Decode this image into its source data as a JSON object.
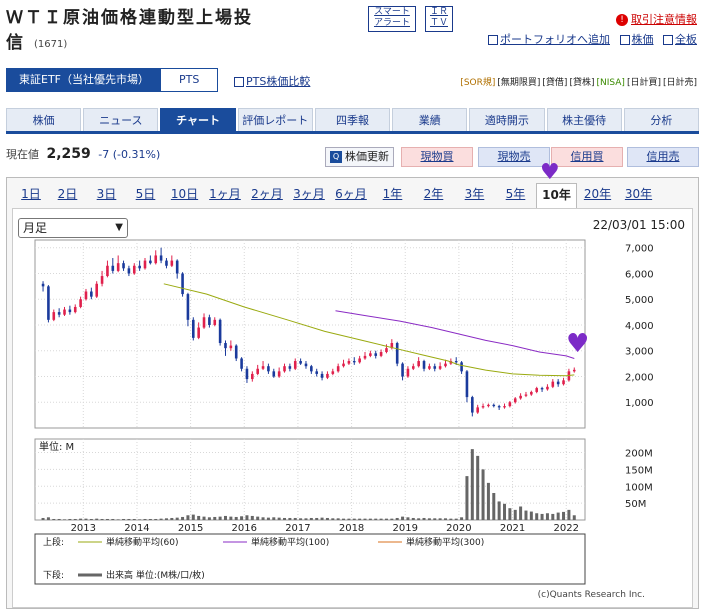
{
  "header": {
    "title_line1": "ＷＴＩ原油価格連動型上場投",
    "title_line2": "信",
    "code": "(1671)",
    "smart_alert": [
      "スマート",
      "アラート"
    ],
    "ir_tv": [
      "ＩＲ",
      "ＴＶ"
    ],
    "warning_label": "取引注意情報",
    "links": [
      "ポートフォリオへ追加",
      "株価",
      "全板"
    ]
  },
  "market": {
    "primary": "東証ETF（当社優先市場）",
    "pts": "PTS",
    "pts_compare": "PTS株価比較",
    "badges": [
      "[SOR規]",
      "[無期限買]",
      "[貸借]",
      "[貸株]",
      "[NISA]",
      "[日計買]",
      "[日計売]"
    ]
  },
  "tabs": [
    "株価",
    "ニュース",
    "チャート",
    "評価レポート",
    "四季報",
    "業績",
    "適時開示",
    "株主優待",
    "分析"
  ],
  "active_tab": "チャート",
  "quote": {
    "label": "現在値",
    "price": "2,259",
    "change": "-7",
    "change_pct": "(-0.31%)",
    "refresh_label": "株価更新"
  },
  "trade_buttons": [
    "現物買",
    "現物売",
    "信用買",
    "信用売"
  ],
  "periods": [
    "1日",
    "2日",
    "3日",
    "5日",
    "10日",
    "1ヶ月",
    "2ヶ月",
    "3ヶ月",
    "6ヶ月",
    "1年",
    "2年",
    "3年",
    "5年",
    "10年",
    "20年",
    "30年"
  ],
  "active_period": "10年",
  "chart": {
    "interval_select": "月足",
    "timestamp": "22/03/01 15:00",
    "unit_label": "単位: M",
    "legend_upper_label": "上段:",
    "legend_lower_label": "下段:",
    "legend_lower_text": "出来高 単位:(M株/口/枚)",
    "credit": "(c)Quants Research Inc."
  },
  "chart_data": {
    "type": "line",
    "x_labels": [
      "2013",
      "2014",
      "2015",
      "2016",
      "2017",
      "2018",
      "2019",
      "2020",
      "2021",
      "2022"
    ],
    "price_axis": {
      "ticks": [
        "1,000",
        "2,000",
        "3,000",
        "4,000",
        "5,000",
        "6,000",
        "7,000"
      ],
      "ylim": [
        0,
        7300
      ]
    },
    "volume_axis": {
      "ticks": [
        "50M",
        "100M",
        "150M",
        "200M"
      ],
      "ylim": [
        0,
        240
      ]
    },
    "series": [
      {
        "name": "単純移動平均(60)",
        "color": "#9aaa10",
        "points": [
          [
            2014.5,
            5600
          ],
          [
            2015.3,
            5200
          ],
          [
            2016.0,
            4700
          ],
          [
            2016.8,
            4200
          ],
          [
            2017.5,
            3750
          ],
          [
            2018.2,
            3400
          ],
          [
            2018.8,
            3100
          ],
          [
            2019.3,
            2850
          ],
          [
            2019.8,
            2600
          ],
          [
            2020.0,
            2450
          ],
          [
            2020.5,
            2250
          ],
          [
            2021.0,
            2100
          ],
          [
            2021.5,
            2050
          ],
          [
            2022.0,
            2030
          ],
          [
            2022.15,
            2060
          ]
        ]
      },
      {
        "name": "単純移動平均(100)",
        "color": "#8a2bc4",
        "points": [
          [
            2017.7,
            4550
          ],
          [
            2018.3,
            4350
          ],
          [
            2018.9,
            4150
          ],
          [
            2019.5,
            3900
          ],
          [
            2020.0,
            3650
          ],
          [
            2020.5,
            3400
          ],
          [
            2021.0,
            3200
          ],
          [
            2021.5,
            2950
          ],
          [
            2022.0,
            2800
          ],
          [
            2022.15,
            2700
          ]
        ]
      },
      {
        "name": "単純移動平均(300)",
        "color": "#d9701c",
        "points": []
      }
    ],
    "price_monthly": [
      [
        2012.25,
        5600,
        5500,
        5700,
        5300
      ],
      [
        2012.35,
        5500,
        4200,
        5550,
        4100
      ],
      [
        2012.45,
        4200,
        4500,
        4600,
        4150
      ],
      [
        2012.55,
        4500,
        4400,
        4650,
        4300
      ],
      [
        2012.65,
        4400,
        4600,
        4700,
        4350
      ],
      [
        2012.75,
        4600,
        4500,
        4750,
        4400
      ],
      [
        2012.85,
        4500,
        4700,
        4800,
        4450
      ],
      [
        2012.95,
        4700,
        5000,
        5100,
        4650
      ],
      [
        2013.05,
        5000,
        5300,
        5400,
        4950
      ],
      [
        2013.15,
        5300,
        5100,
        5450,
        5000
      ],
      [
        2013.25,
        5100,
        5600,
        5700,
        5050
      ],
      [
        2013.35,
        5600,
        5900,
        6100,
        5500
      ],
      [
        2013.45,
        5900,
        6300,
        6500,
        5850
      ],
      [
        2013.55,
        6300,
        6100,
        6600,
        6000
      ],
      [
        2013.65,
        6100,
        6400,
        6700,
        6050
      ],
      [
        2013.75,
        6400,
        6200,
        6500,
        6100
      ],
      [
        2013.85,
        6200,
        6000,
        6300,
        5900
      ],
      [
        2013.95,
        6000,
        6300,
        6400,
        5950
      ],
      [
        2014.05,
        6300,
        6200,
        6500,
        6100
      ],
      [
        2014.15,
        6200,
        6500,
        6600,
        6150
      ],
      [
        2014.25,
        6500,
        6400,
        6700,
        6350
      ],
      [
        2014.35,
        6400,
        6700,
        6900,
        6350
      ],
      [
        2014.45,
        6700,
        6500,
        7000,
        6400
      ],
      [
        2014.55,
        6500,
        6300,
        6600,
        6200
      ],
      [
        2014.65,
        6300,
        6500,
        6700,
        6250
      ],
      [
        2014.75,
        6500,
        6000,
        6550,
        5800
      ],
      [
        2014.85,
        6000,
        5200,
        6050,
        5100
      ],
      [
        2014.95,
        5200,
        4200,
        5250,
        3950
      ],
      [
        2015.05,
        4200,
        3500,
        4300,
        3400
      ],
      [
        2015.15,
        3500,
        3900,
        4100,
        3450
      ],
      [
        2015.25,
        3900,
        4300,
        4450,
        3850
      ],
      [
        2015.35,
        4300,
        4000,
        4400,
        3900
      ],
      [
        2015.45,
        4000,
        4200,
        4300,
        3950
      ],
      [
        2015.55,
        4200,
        3300,
        4250,
        3200
      ],
      [
        2015.65,
        3300,
        3100,
        3400,
        2800
      ],
      [
        2015.75,
        3100,
        3200,
        3400,
        3000
      ],
      [
        2015.85,
        3200,
        2700,
        3250,
        2600
      ],
      [
        2015.95,
        2700,
        2300,
        2750,
        2200
      ],
      [
        2016.05,
        2300,
        1900,
        2400,
        1750
      ],
      [
        2016.15,
        1900,
        2100,
        2200,
        1800
      ],
      [
        2016.25,
        2100,
        2300,
        2450,
        2050
      ],
      [
        2016.35,
        2300,
        2400,
        2600,
        2250
      ],
      [
        2016.45,
        2400,
        2200,
        2500,
        2100
      ],
      [
        2016.55,
        2200,
        2000,
        2300,
        1950
      ],
      [
        2016.65,
        2000,
        2200,
        2350,
        1950
      ],
      [
        2016.75,
        2200,
        2400,
        2500,
        2150
      ],
      [
        2016.85,
        2400,
        2300,
        2500,
        2200
      ],
      [
        2016.95,
        2300,
        2600,
        2700,
        2250
      ],
      [
        2017.05,
        2600,
        2500,
        2700,
        2450
      ],
      [
        2017.15,
        2500,
        2400,
        2600,
        2300
      ],
      [
        2017.25,
        2400,
        2200,
        2450,
        2100
      ],
      [
        2017.35,
        2200,
        2100,
        2300,
        2000
      ],
      [
        2017.45,
        2100,
        1950,
        2200,
        1850
      ],
      [
        2017.55,
        1950,
        2100,
        2200,
        1900
      ],
      [
        2017.65,
        2100,
        2200,
        2300,
        2050
      ],
      [
        2017.75,
        2200,
        2400,
        2500,
        2150
      ],
      [
        2017.85,
        2400,
        2500,
        2650,
        2350
      ],
      [
        2017.95,
        2500,
        2600,
        2700,
        2450
      ],
      [
        2018.05,
        2600,
        2550,
        2750,
        2450
      ],
      [
        2018.15,
        2550,
        2700,
        2800,
        2500
      ],
      [
        2018.25,
        2700,
        2800,
        2950,
        2650
      ],
      [
        2018.35,
        2800,
        2900,
        3000,
        2750
      ],
      [
        2018.45,
        2900,
        2800,
        3000,
        2700
      ],
      [
        2018.55,
        2800,
        2950,
        3050,
        2750
      ],
      [
        2018.65,
        2950,
        3100,
        3250,
        2900
      ],
      [
        2018.75,
        3100,
        3300,
        3450,
        3050
      ],
      [
        2018.85,
        3300,
        2500,
        3350,
        2400
      ],
      [
        2018.95,
        2500,
        2000,
        2550,
        1850
      ],
      [
        2019.05,
        2000,
        2300,
        2400,
        1950
      ],
      [
        2019.15,
        2300,
        2400,
        2500,
        2250
      ],
      [
        2019.25,
        2400,
        2600,
        2750,
        2350
      ],
      [
        2019.35,
        2600,
        2300,
        2650,
        2200
      ],
      [
        2019.45,
        2300,
        2400,
        2500,
        2250
      ],
      [
        2019.55,
        2400,
        2300,
        2500,
        2200
      ],
      [
        2019.65,
        2300,
        2400,
        2550,
        2250
      ],
      [
        2019.75,
        2400,
        2500,
        2650,
        2350
      ],
      [
        2019.85,
        2500,
        2600,
        2700,
        2450
      ],
      [
        2019.95,
        2600,
        2550,
        2750,
        2450
      ],
      [
        2020.05,
        2550,
        2200,
        2600,
        2100
      ],
      [
        2020.15,
        2200,
        1200,
        2250,
        1000
      ],
      [
        2020.25,
        1200,
        600,
        1250,
        450
      ],
      [
        2020.35,
        600,
        800,
        900,
        550
      ],
      [
        2020.45,
        800,
        850,
        950,
        750
      ],
      [
        2020.55,
        850,
        900,
        950,
        800
      ],
      [
        2020.65,
        900,
        850,
        950,
        800
      ],
      [
        2020.75,
        850,
        800,
        900,
        700
      ],
      [
        2020.85,
        800,
        850,
        950,
        750
      ],
      [
        2020.95,
        850,
        1000,
        1050,
        800
      ],
      [
        2021.05,
        1000,
        1150,
        1200,
        950
      ],
      [
        2021.15,
        1150,
        1250,
        1350,
        1100
      ],
      [
        2021.25,
        1250,
        1300,
        1400,
        1200
      ],
      [
        2021.35,
        1300,
        1400,
        1450,
        1250
      ],
      [
        2021.45,
        1400,
        1550,
        1600,
        1350
      ],
      [
        2021.55,
        1550,
        1500,
        1600,
        1400
      ],
      [
        2021.65,
        1500,
        1600,
        1700,
        1450
      ],
      [
        2021.75,
        1600,
        1800,
        1900,
        1550
      ],
      [
        2021.85,
        1800,
        1700,
        1900,
        1600
      ],
      [
        2021.95,
        1700,
        1850,
        1950,
        1650
      ],
      [
        2022.05,
        1850,
        2200,
        2300,
        1800
      ],
      [
        2022.15,
        2200,
        2259,
        2350,
        2150
      ]
    ],
    "volume_monthly": [
      [
        2012.25,
        6
      ],
      [
        2012.35,
        8
      ],
      [
        2012.45,
        3
      ],
      [
        2012.55,
        3
      ],
      [
        2012.65,
        2
      ],
      [
        2012.75,
        3
      ],
      [
        2012.85,
        3
      ],
      [
        2012.95,
        4
      ],
      [
        2013.05,
        4
      ],
      [
        2013.15,
        3
      ],
      [
        2013.25,
        4
      ],
      [
        2013.35,
        3
      ],
      [
        2013.45,
        3
      ],
      [
        2013.55,
        3
      ],
      [
        2013.65,
        2
      ],
      [
        2013.75,
        3
      ],
      [
        2013.85,
        3
      ],
      [
        2013.95,
        3
      ],
      [
        2014.05,
        2
      ],
      [
        2014.15,
        3
      ],
      [
        2014.25,
        3
      ],
      [
        2014.35,
        3
      ],
      [
        2014.45,
        4
      ],
      [
        2014.55,
        5
      ],
      [
        2014.65,
        6
      ],
      [
        2014.75,
        7
      ],
      [
        2014.85,
        9
      ],
      [
        2014.95,
        14
      ],
      [
        2015.05,
        16
      ],
      [
        2015.15,
        12
      ],
      [
        2015.25,
        10
      ],
      [
        2015.35,
        8
      ],
      [
        2015.45,
        9
      ],
      [
        2015.55,
        10
      ],
      [
        2015.65,
        12
      ],
      [
        2015.75,
        10
      ],
      [
        2015.85,
        9
      ],
      [
        2015.95,
        11
      ],
      [
        2016.05,
        14
      ],
      [
        2016.15,
        12
      ],
      [
        2016.25,
        10
      ],
      [
        2016.35,
        8
      ],
      [
        2016.45,
        7
      ],
      [
        2016.55,
        8
      ],
      [
        2016.65,
        7
      ],
      [
        2016.75,
        6
      ],
      [
        2016.85,
        6
      ],
      [
        2016.95,
        6
      ],
      [
        2017.05,
        5
      ],
      [
        2017.15,
        5
      ],
      [
        2017.25,
        6
      ],
      [
        2017.35,
        6
      ],
      [
        2017.45,
        7
      ],
      [
        2017.55,
        6
      ],
      [
        2017.65,
        5
      ],
      [
        2017.75,
        5
      ],
      [
        2017.85,
        4
      ],
      [
        2017.95,
        4
      ],
      [
        2018.05,
        4
      ],
      [
        2018.15,
        4
      ],
      [
        2018.25,
        4
      ],
      [
        2018.35,
        4
      ],
      [
        2018.45,
        4
      ],
      [
        2018.55,
        4
      ],
      [
        2018.65,
        4
      ],
      [
        2018.75,
        4
      ],
      [
        2018.85,
        6
      ],
      [
        2018.95,
        10
      ],
      [
        2019.05,
        8
      ],
      [
        2019.15,
        6
      ],
      [
        2019.25,
        5
      ],
      [
        2019.35,
        6
      ],
      [
        2019.45,
        5
      ],
      [
        2019.55,
        5
      ],
      [
        2019.65,
        5
      ],
      [
        2019.75,
        5
      ],
      [
        2019.85,
        4
      ],
      [
        2019.95,
        4
      ],
      [
        2020.05,
        8
      ],
      [
        2020.15,
        130
      ],
      [
        2020.25,
        210
      ],
      [
        2020.35,
        190
      ],
      [
        2020.45,
        150
      ],
      [
        2020.55,
        110
      ],
      [
        2020.65,
        80
      ],
      [
        2020.75,
        55
      ],
      [
        2020.85,
        48
      ],
      [
        2020.95,
        35
      ],
      [
        2021.05,
        30
      ],
      [
        2021.15,
        40
      ],
      [
        2021.25,
        28
      ],
      [
        2021.35,
        25
      ],
      [
        2021.45,
        20
      ],
      [
        2021.55,
        18
      ],
      [
        2021.65,
        20
      ],
      [
        2021.75,
        18
      ],
      [
        2021.85,
        22
      ],
      [
        2021.95,
        24
      ],
      [
        2022.05,
        30
      ],
      [
        2022.15,
        14
      ]
    ]
  }
}
